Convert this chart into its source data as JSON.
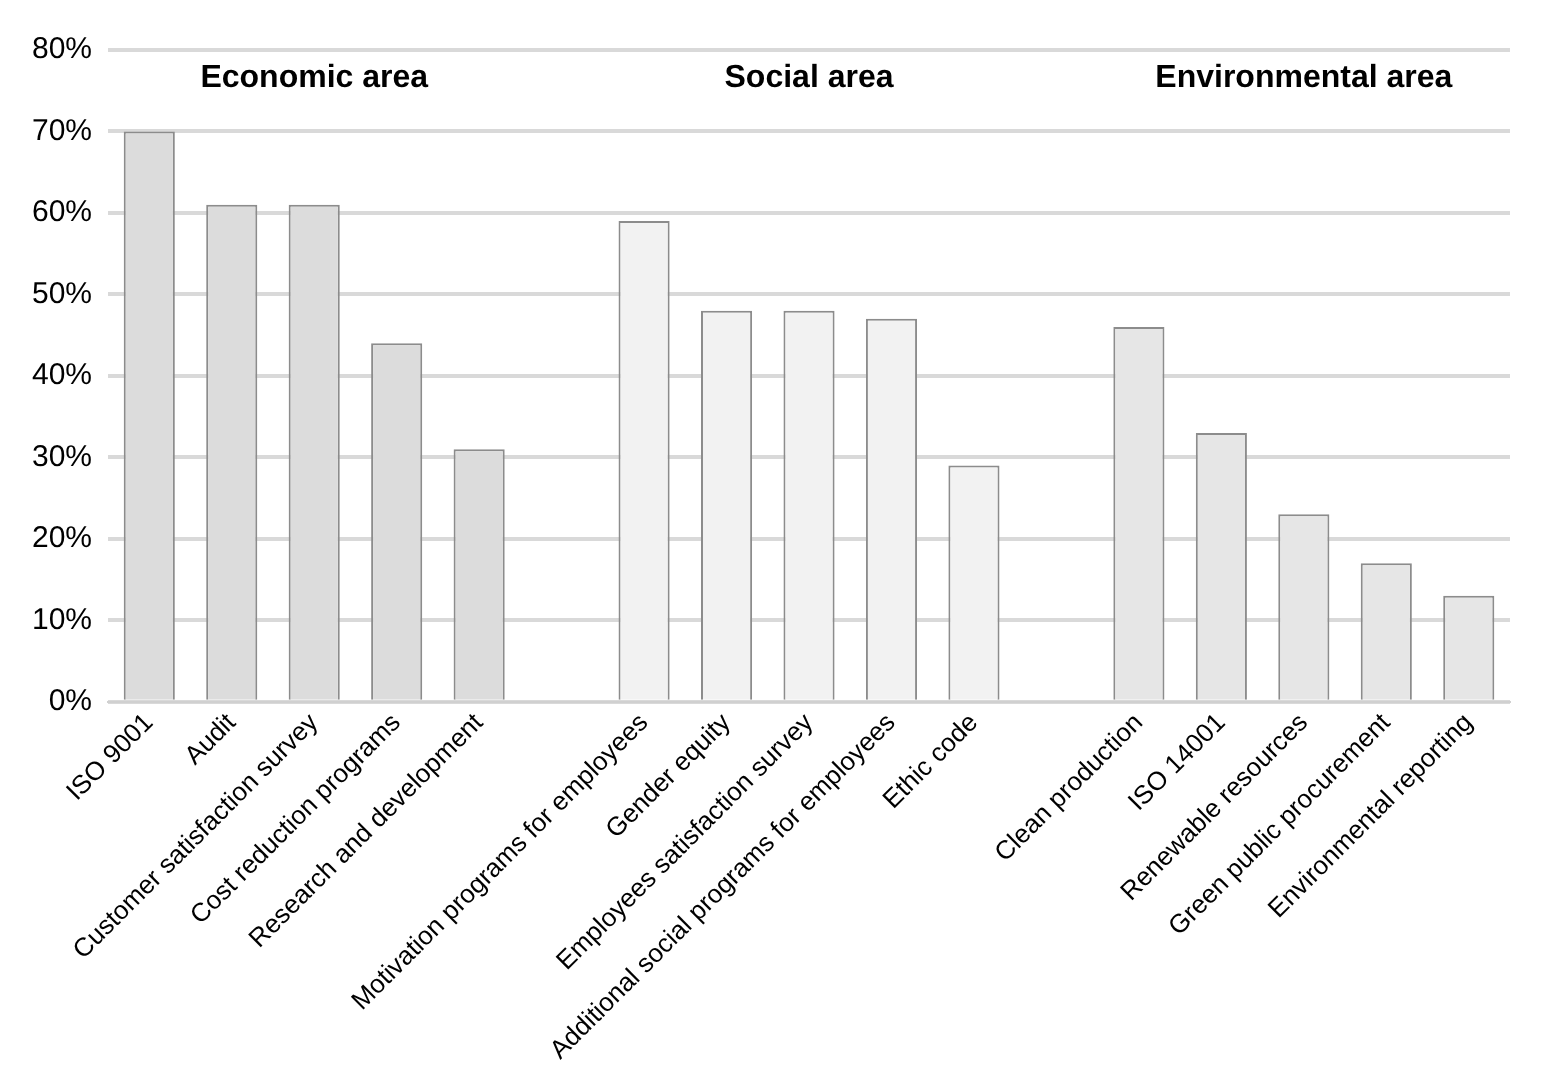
{
  "chart_data": {
    "type": "bar",
    "categories": [
      "ISO 9001",
      "Audit",
      "Customer satisfaction survey",
      "Cost reduction programs",
      "Research and development",
      null,
      "Motivation programs for employees",
      "Gender equity",
      "Employees satisfaction survey",
      "Additional social programs for employees",
      "Ethic code",
      null,
      "Clean production",
      "ISO 14001",
      "Renewable resources",
      "Green public procurement",
      "Environmental reporting"
    ],
    "values": [
      70,
      61,
      61,
      44,
      31,
      null,
      59,
      48,
      48,
      47,
      29,
      null,
      46,
      33,
      23,
      17,
      13
    ],
    "colors": [
      "#dcdcdc",
      "#dcdcdc",
      "#dcdcdc",
      "#dcdcdc",
      "#dcdcdc",
      "#ffffff",
      "#f2f2f2",
      "#f2f2f2",
      "#f2f2f2",
      "#f2f2f2",
      "#f2f2f2",
      "#ffffff",
      "#e6e6e6",
      "#e6e6e6",
      "#e6e6e6",
      "#e6e6e6",
      "#e6e6e6"
    ],
    "ylim": [
      0,
      80
    ],
    "yticks": [
      {
        "value": 0,
        "label": "0%"
      },
      {
        "value": 10,
        "label": "10%"
      },
      {
        "value": 20,
        "label": "20%"
      },
      {
        "value": 30,
        "label": "30%"
      },
      {
        "value": 40,
        "label": "40%"
      },
      {
        "value": 50,
        "label": "50%"
      },
      {
        "value": 60,
        "label": "60%"
      },
      {
        "value": 70,
        "label": "70%"
      },
      {
        "value": 80,
        "label": "80%"
      }
    ],
    "annotations": [
      "Economic area",
      "Social area",
      "Environmental area"
    ],
    "grid": "y",
    "legend": false
  }
}
